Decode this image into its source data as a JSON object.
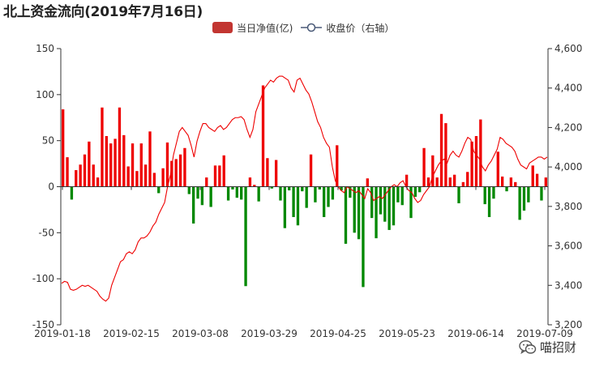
{
  "chart_data": {
    "type": "bar+line",
    "title": "北上资金流向(2019年7月16日)",
    "legend_position": "top-center",
    "grid": false,
    "x_tick_labels": [
      "2019-01-18",
      "2019-02-15",
      "2019-03-08",
      "2019-03-29",
      "2019-04-25",
      "2019-05-23",
      "2019-06-14",
      "2019-07-09"
    ],
    "y_left": {
      "ticks": [
        150,
        100,
        50,
        0,
        -50,
        -100,
        -150
      ],
      "range": [
        -150,
        150
      ]
    },
    "y_right": {
      "ticks": [
        "4,600",
        "4,400",
        "4,200",
        "4,000",
        "3,800",
        "3,600",
        "3,400",
        "3,200"
      ],
      "range": [
        3200,
        4600
      ]
    },
    "series": [
      {
        "name": "当日净值(亿)",
        "type": "bar",
        "axis": "left",
        "positive_color": "#ee0000",
        "negative_color": "#008800",
        "values": [
          84,
          32,
          -14,
          18,
          24,
          35,
          49,
          24,
          10,
          86,
          55,
          47,
          52,
          86,
          56,
          22,
          47,
          17,
          47,
          24,
          60,
          15,
          -7,
          20,
          48,
          28,
          30,
          35,
          42,
          -8,
          -40,
          -13,
          -20,
          10,
          -22,
          23,
          23,
          34,
          -15,
          -3,
          -12,
          -14,
          -108,
          10,
          2,
          -16,
          110,
          31,
          -2,
          29,
          -15,
          -45,
          -4,
          -33,
          -42,
          -5,
          -23,
          35,
          -17,
          -3,
          -33,
          -22,
          -14,
          45,
          -4,
          -62,
          -12,
          -50,
          -57,
          -109,
          9,
          -34,
          -56,
          -30,
          -38,
          -47,
          -42,
          -17,
          -20,
          13,
          -34,
          -11,
          -6,
          42,
          10,
          34,
          10,
          79,
          69,
          10,
          13,
          -18,
          5,
          16,
          49,
          55,
          73,
          -19,
          -33,
          -13,
          38,
          11,
          -5,
          10,
          5,
          -36,
          -26,
          -17,
          23,
          14,
          -15,
          10
        ],
        "x_start": "2019-01-14",
        "x_end": "2019-07-16"
      },
      {
        "name": "收盘价（右轴）",
        "type": "line",
        "axis": "right",
        "color": "#ee0000",
        "values": [
          3410,
          3420,
          3415,
          3380,
          3375,
          3380,
          3390,
          3400,
          3395,
          3400,
          3390,
          3380,
          3370,
          3345,
          3330,
          3320,
          3335,
          3400,
          3440,
          3480,
          3520,
          3530,
          3560,
          3570,
          3560,
          3580,
          3620,
          3640,
          3640,
          3650,
          3670,
          3700,
          3720,
          3760,
          3790,
          3820,
          3900,
          3960,
          4060,
          4120,
          4180,
          4200,
          4180,
          4160,
          4110,
          4050,
          4130,
          4180,
          4220,
          4220,
          4200,
          4190,
          4180,
          4200,
          4210,
          4190,
          4200,
          4220,
          4240,
          4250,
          4250,
          4255,
          4240,
          4190,
          4150,
          4190,
          4280,
          4320,
          4360,
          4400,
          4420,
          4440,
          4430,
          4450,
          4460,
          4460,
          4450,
          4440,
          4400,
          4380,
          4440,
          4450,
          4420,
          4390,
          4370,
          4330,
          4280,
          4230,
          4200,
          4150,
          4120,
          4100,
          4000,
          3930,
          3900,
          3880,
          3870,
          3900,
          3890,
          3880,
          3870,
          3880,
          3860,
          3840,
          3890,
          3870,
          3830,
          3840,
          3850,
          3840,
          3860,
          3880,
          3900,
          3910,
          3900,
          3920,
          3930,
          3900,
          3880,
          3870,
          3840,
          3820,
          3830,
          3860,
          3880,
          3900,
          3950,
          3980,
          4010,
          4030,
          4040,
          4020,
          4060,
          4080,
          4060,
          4050,
          4080,
          4120,
          4150,
          4140,
          4080,
          4060,
          4040,
          4000,
          3980,
          4010,
          4030,
          4060,
          4090,
          4150,
          4140,
          4120,
          4110,
          4100,
          4080,
          4040,
          4010,
          4000,
          3990,
          4020,
          4030,
          4040,
          4050,
          4050,
          4040,
          4050
        ]
      }
    ]
  },
  "watermark": {
    "text": "喵招财",
    "icon": "wechat-icon"
  }
}
